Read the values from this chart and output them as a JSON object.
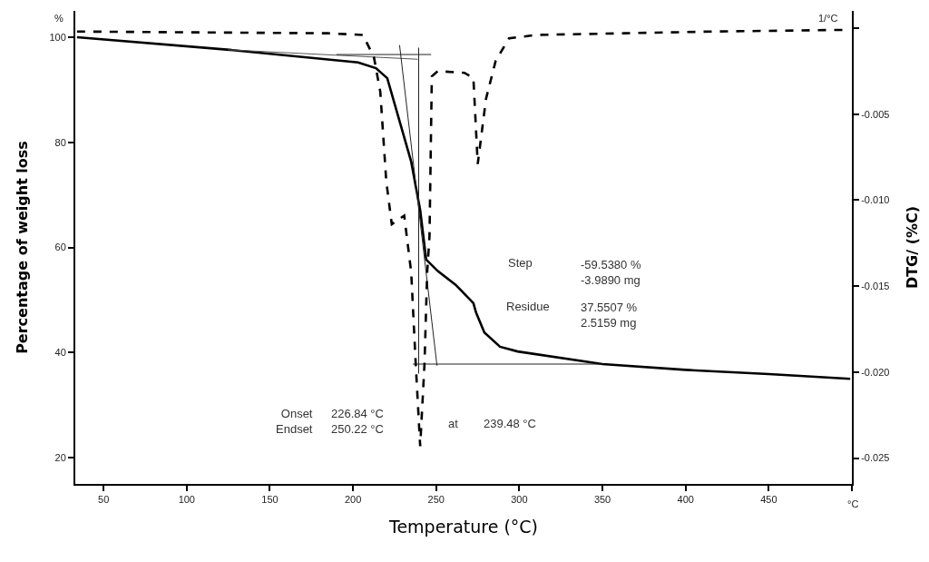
{
  "chart_data": {
    "type": "line",
    "xlabel": "Temperature (°C)",
    "ylabel": "Percentage of weight loss",
    "y2label": "DTG/ (%C)",
    "xlim": [
      33,
      500
    ],
    "xticks": [
      50,
      100,
      150,
      200,
      250,
      300,
      350,
      400,
      450,
      {
        "value": 500,
        "label": null
      }
    ],
    "ylim": [
      15,
      105
    ],
    "yticks": [
      20,
      40,
      60,
      80,
      100
    ],
    "y2lim": [
      -0.0265,
      0.001
    ],
    "y2ticks": [
      {
        "value": -0.005,
        "label": "-0.005"
      },
      {
        "value": -0.01,
        "label": "-0.010"
      },
      {
        "value": -0.015,
        "label": "-0.015"
      },
      {
        "value": -0.02,
        "label": "-0.020"
      },
      {
        "value": -0.025,
        "label": "-0.025"
      },
      {
        "value": 0,
        "label": null
      }
    ],
    "marker": "none",
    "series": [
      {
        "color": "#000000",
        "line_style": "solid",
        "axis": "y",
        "x": [
          34,
          125.7,
          203,
          213.8,
          220.6,
          235,
          240.4,
          244,
          251,
          261.7,
          272.4,
          274,
          279,
          288.4,
          299,
          350,
          400,
          450,
          499
        ],
        "values": [
          100,
          97.6,
          95.2,
          94.1,
          92.2,
          76.3,
          67.1,
          57.7,
          55.5,
          52.9,
          49.4,
          47.6,
          43.8,
          41.1,
          40.2,
          37.8,
          36.7,
          35.9,
          35.0
        ]
      },
      {
        "color": "#000000",
        "line_style": "dashed",
        "axis": "y2",
        "x": [
          34,
          185,
          206,
          212.6,
          216.4,
          220,
          223.3,
          230.8,
          235,
          237.7,
          240.4,
          243,
          244.6,
          246,
          247.4,
          251,
          267,
          272.4,
          275,
          280,
          285.8,
          293.8,
          309.8,
          363,
          416,
          499
        ],
        "values": [
          -0.0002,
          -0.0003,
          -0.0004,
          -0.0017,
          -0.0037,
          -0.0089,
          -0.0114,
          -0.0109,
          -0.0142,
          -0.0195,
          -0.0243,
          -0.0195,
          -0.0142,
          -0.0121,
          -0.0028,
          -0.0025,
          -0.0026,
          -0.0029,
          -0.0079,
          -0.0041,
          -0.0019,
          -0.0006,
          -0.0004,
          -0.0003,
          -0.0002,
          -0.0001
        ]
      },
      {
        "color": "#555555",
        "line_style": "solid",
        "axis": "y",
        "x": [
          125,
          239
        ],
        "values": [
          97.6,
          95.8
        ]
      },
      {
        "color": "#222222",
        "line_style": "solid",
        "axis": "y",
        "x": [
          190,
          247
        ],
        "values": [
          96.7,
          96.7
        ]
      },
      {
        "color": "#222222",
        "line_style": "solid",
        "axis": "y",
        "x": [
          228,
          250.5
        ],
        "values": [
          98.5,
          37.5
        ]
      },
      {
        "color": "#222222",
        "line_style": "solid",
        "axis": "y",
        "x": [
          236,
          350
        ],
        "values": [
          37.8,
          37.8
        ]
      },
      {
        "color": "#222222",
        "line_style": "solid",
        "axis": "y",
        "x": [
          239.5,
          239.5
        ],
        "values": [
          98,
          36
        ]
      }
    ],
    "annotations": [
      "Step",
      "-59.5380 %\n-3.9890 mg",
      "Residue",
      "37.5507 %\n2.5159 mg",
      "Onset\nEndset",
      "226.84 °C\n250.22 °C",
      "at",
      "239.48 °C",
      "%",
      "1/°C",
      "°C"
    ]
  }
}
